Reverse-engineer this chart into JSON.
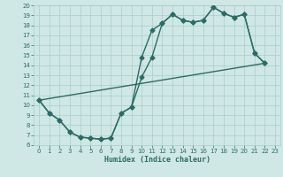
{
  "xlabel": "Humidex (Indice chaleur)",
  "xlim": [
    -0.5,
    23.5
  ],
  "ylim": [
    6,
    20
  ],
  "xticks": [
    0,
    1,
    2,
    3,
    4,
    5,
    6,
    7,
    8,
    9,
    10,
    11,
    12,
    13,
    14,
    15,
    16,
    17,
    18,
    19,
    20,
    21,
    22,
    23
  ],
  "yticks": [
    6,
    7,
    8,
    9,
    10,
    11,
    12,
    13,
    14,
    15,
    16,
    17,
    18,
    19,
    20
  ],
  "bg_color": "#cfe8e5",
  "line_color": "#2d6b65",
  "grid_color": "#a8ccca",
  "line1_x": [
    0,
    1,
    2,
    3,
    4,
    5,
    6,
    7,
    8,
    9,
    10,
    11,
    12,
    13,
    14,
    15,
    16,
    17,
    18,
    19,
    20,
    21,
    22
  ],
  "line1_y": [
    10.5,
    9.2,
    8.5,
    7.3,
    6.8,
    6.7,
    6.6,
    6.7,
    9.2,
    9.8,
    14.8,
    17.5,
    18.2,
    19.1,
    18.5,
    18.3,
    18.5,
    19.8,
    19.2,
    18.8,
    19.1,
    15.2,
    14.2
  ],
  "line2_x": [
    0,
    1,
    2,
    3,
    4,
    5,
    6,
    7,
    8,
    9,
    10,
    11,
    12,
    13,
    14,
    15,
    16,
    17,
    18,
    19,
    20,
    21,
    22
  ],
  "line2_y": [
    10.5,
    9.2,
    8.5,
    7.3,
    6.8,
    6.7,
    6.6,
    6.7,
    9.2,
    9.8,
    12.8,
    14.8,
    18.2,
    19.1,
    18.5,
    18.3,
    18.5,
    19.8,
    19.2,
    18.8,
    19.1,
    15.2,
    14.2
  ],
  "line3_x": [
    0,
    22
  ],
  "line3_y": [
    10.5,
    14.2
  ],
  "markersize": 2.5,
  "linewidth": 1.0
}
